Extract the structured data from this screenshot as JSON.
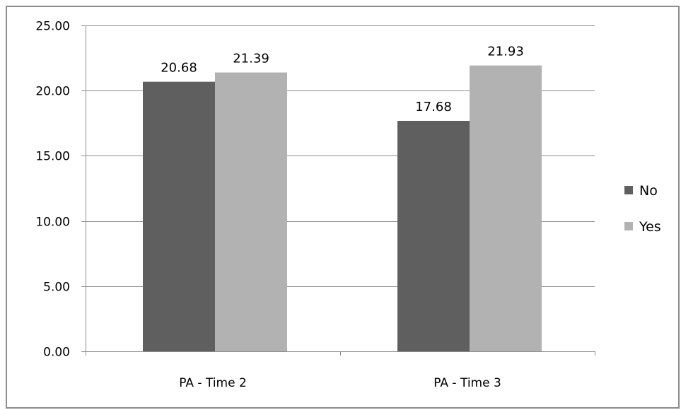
{
  "chart_data": {
    "type": "bar",
    "categories": [
      "PA - Time 2",
      "PA - Time 3"
    ],
    "series": [
      {
        "name": "No",
        "values": [
          20.68,
          17.68
        ],
        "value_labels": [
          "20.68",
          "17.68"
        ],
        "color": "#5f5f5f"
      },
      {
        "name": "Yes",
        "values": [
          21.39,
          21.93
        ],
        "value_labels": [
          "21.39",
          "21.93"
        ],
        "color": "#b2b2b2"
      }
    ],
    "y_ticks": [
      0,
      5,
      10,
      15,
      20,
      25
    ],
    "y_tick_labels": [
      "0.00",
      "5.00",
      "10.00",
      "15.00",
      "20.00",
      "25.00"
    ],
    "ylim": [
      0,
      25
    ],
    "grid": true,
    "legend_position": "right",
    "gridline_color": "#8c8c8c"
  }
}
